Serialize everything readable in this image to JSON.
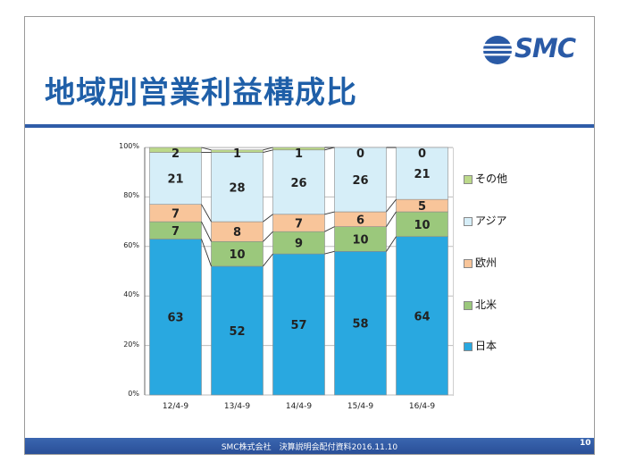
{
  "slide": {
    "title": "地域別営業利益構成比",
    "logo": "SMC",
    "footer": "SMC株式会社　決算説明会配付資料2016.11.10",
    "page_number": "10"
  },
  "colors": {
    "日本": "#29a8e0",
    "北米": "#9bc87c",
    "欧州": "#f8c59a",
    "アジア": "#d6eef8",
    "その他": "#bcd98a",
    "title": "#1f5fa8",
    "footer_bar": "#2f5da8"
  },
  "chart_data": {
    "type": "bar",
    "stacked": true,
    "percent": true,
    "categories": [
      "12/4-9",
      "13/4-9",
      "14/4-9",
      "15/4-9",
      "16/4-9"
    ],
    "series": [
      {
        "name": "日本",
        "values": [
          63,
          52,
          57,
          58,
          64
        ]
      },
      {
        "name": "北米",
        "values": [
          7,
          10,
          9,
          10,
          10
        ]
      },
      {
        "name": "欧州",
        "values": [
          7,
          8,
          7,
          6,
          5
        ]
      },
      {
        "name": "アジア",
        "values": [
          21,
          28,
          26,
          26,
          21
        ]
      },
      {
        "name": "その他",
        "values": [
          2,
          1,
          1,
          0,
          0
        ]
      }
    ],
    "yticks": [
      "0%",
      "20%",
      "40%",
      "60%",
      "80%",
      "100%"
    ],
    "ylim": [
      0,
      100
    ],
    "series_lines": true,
    "legend_position": "right",
    "legend_order": [
      "その他",
      "アジア",
      "欧州",
      "北米",
      "日本"
    ]
  }
}
